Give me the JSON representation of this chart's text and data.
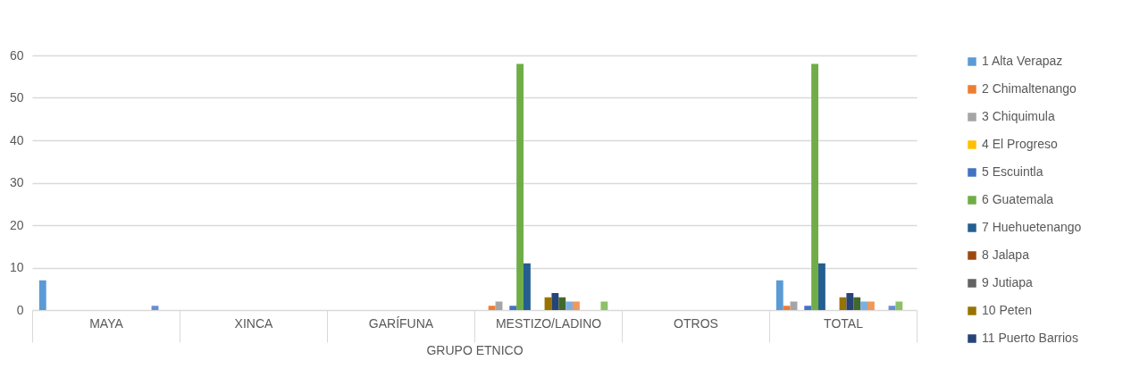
{
  "chart_data": {
    "type": "bar",
    "xlabel": "GRUPO ETNICO",
    "categories": [
      "MAYA",
      "XINCA",
      "GARÍFUNA",
      "MESTIZO/LADINO",
      "OTROS",
      "TOTAL"
    ],
    "series": [
      {
        "name": "1 Alta Verapaz",
        "color": "#5b9bd5",
        "values": [
          7,
          0,
          0,
          0,
          0,
          7
        ]
      },
      {
        "name": "2 Chimaltenango",
        "color": "#ed7d31",
        "values": [
          0,
          0,
          0,
          1,
          0,
          1
        ]
      },
      {
        "name": "3 Chiquimula",
        "color": "#a5a5a5",
        "values": [
          0,
          0,
          0,
          2,
          0,
          2
        ]
      },
      {
        "name": "4 El Progreso",
        "color": "#ffc000",
        "values": [
          0,
          0,
          0,
          0,
          0,
          0
        ]
      },
      {
        "name": "5 Escuintla",
        "color": "#4472c4",
        "values": [
          0,
          0,
          0,
          1,
          0,
          1
        ]
      },
      {
        "name": "6 Guatemala",
        "color": "#70ad47",
        "values": [
          0,
          0,
          0,
          58,
          0,
          58
        ]
      },
      {
        "name": "7 Huehuetenango",
        "color": "#255e91",
        "values": [
          0,
          0,
          0,
          11,
          0,
          11
        ]
      },
      {
        "name": "8 Jalapa",
        "color": "#9e480e",
        "values": [
          0,
          0,
          0,
          0,
          0,
          0
        ]
      },
      {
        "name": "9 Jutiapa",
        "color": "#636363",
        "values": [
          0,
          0,
          0,
          0,
          0,
          0
        ]
      },
      {
        "name": "10 Peten",
        "color": "#997300",
        "values": [
          0,
          0,
          0,
          3,
          0,
          3
        ]
      },
      {
        "name": "11 Puerto Barrios",
        "color": "#264478",
        "values": [
          0,
          0,
          0,
          4,
          0,
          4
        ]
      },
      {
        "color": "#43682b",
        "values": [
          0,
          0,
          0,
          3,
          0,
          3
        ]
      },
      {
        "color": "#7cafdd",
        "values": [
          0,
          0,
          0,
          2,
          0,
          2
        ]
      },
      {
        "color": "#f1975a",
        "values": [
          0,
          0,
          0,
          2,
          0,
          2
        ]
      },
      {
        "color": "#b7b7b7",
        "values": [
          0,
          0,
          0,
          0,
          0,
          0
        ]
      },
      {
        "color": "#ffcd33",
        "values": [
          0,
          0,
          0,
          0,
          0,
          0
        ]
      },
      {
        "color": "#698ed0",
        "values": [
          1,
          0,
          0,
          0,
          0,
          1
        ]
      },
      {
        "color": "#8cc168",
        "values": [
          0,
          0,
          0,
          2,
          0,
          2
        ]
      },
      {
        "color": "#327dc2",
        "values": [
          0,
          0,
          0,
          0,
          0,
          0
        ]
      }
    ],
    "ylim": [
      0,
      60
    ],
    "yticks": [
      0,
      10,
      20,
      30,
      40,
      50,
      60
    ],
    "grid": "y",
    "legend": "right"
  }
}
